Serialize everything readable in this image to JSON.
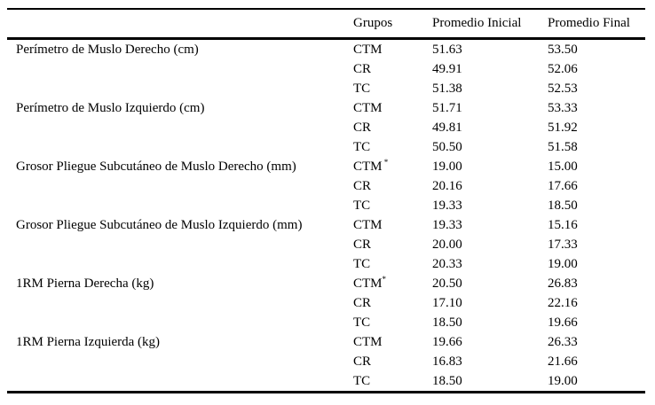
{
  "page": {
    "background": "#ffffff",
    "text_color": "#000000",
    "rule_color": "#000000"
  },
  "table": {
    "header": {
      "label": "",
      "grupos": "Grupos",
      "inicial": "Promedio Inicial",
      "final": "Promedio Final"
    },
    "rows": [
      {
        "label": "Perímetro de Muslo Derecho (cm)",
        "group": "CTM",
        "marker": "",
        "inicial": "51.63",
        "final": "53.50"
      },
      {
        "label": "",
        "group": "CR",
        "marker": "",
        "inicial": "49.91",
        "final": "52.06"
      },
      {
        "label": "",
        "group": "TC",
        "marker": "",
        "inicial": "51.38",
        "final": "52.53"
      },
      {
        "label": "Perímetro de Muslo Izquierdo (cm)",
        "group": "CTM",
        "marker": "",
        "inicial": "51.71",
        "final": "53.33"
      },
      {
        "label": "",
        "group": "CR",
        "marker": "",
        "inicial": "49.81",
        "final": "51.92"
      },
      {
        "label": "",
        "group": "TC",
        "marker": "",
        "inicial": "50.50",
        "final": "51.58"
      },
      {
        "label": "Grosor Pliegue Subcutáneo de Muslo Derecho (mm)",
        "group": "CTM",
        "marker": " *",
        "inicial": "19.00",
        "final": "15.00"
      },
      {
        "label": "",
        "group": "CR",
        "marker": "",
        "inicial": "20.16",
        "final": "17.66"
      },
      {
        "label": "",
        "group": "TC",
        "marker": "",
        "inicial": "19.33",
        "final": "18.50"
      },
      {
        "label": "Grosor Pliegue Subcutáneo de Muslo Izquierdo (mm)",
        "group": "CTM",
        "marker": "",
        "inicial": "19.33",
        "final": "15.16"
      },
      {
        "label": "",
        "group": "CR",
        "marker": "",
        "inicial": "20.00",
        "final": "17.33"
      },
      {
        "label": "",
        "group": "TC",
        "marker": "",
        "inicial": "20.33",
        "final": "19.00"
      },
      {
        "label": "1RM Pierna Derecha (kg)",
        "group": "CTM",
        "marker": "*",
        "inicial": "20.50",
        "final": "26.83"
      },
      {
        "label": "",
        "group": "CR",
        "marker": "",
        "inicial": "17.10",
        "final": "22.16"
      },
      {
        "label": "",
        "group": "TC",
        "marker": "",
        "inicial": "18.50",
        "final": "19.66"
      },
      {
        "label": "1RM Pierna Izquierda (kg)",
        "group": "CTM",
        "marker": "",
        "inicial": "19.66",
        "final": "26.33"
      },
      {
        "label": "",
        "group": "CR",
        "marker": "",
        "inicial": "16.83",
        "final": "21.66"
      },
      {
        "label": "",
        "group": "TC",
        "marker": "",
        "inicial": "18.50",
        "final": "19.00"
      }
    ]
  }
}
